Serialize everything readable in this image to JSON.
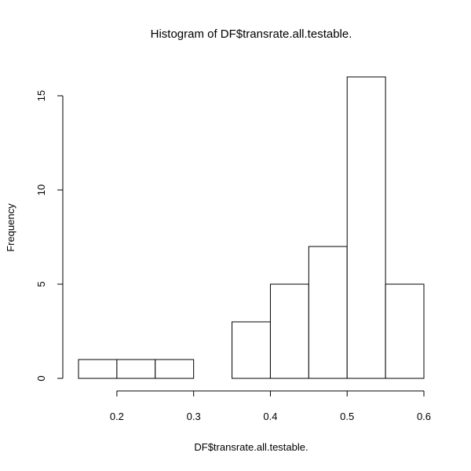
{
  "chart_data": {
    "type": "bar",
    "title": "Histogram of DF$transrate.all.testable.",
    "xlabel": "DF$transrate.all.testable.",
    "ylabel": "Frequency",
    "bins": [
      {
        "from": 0.15,
        "to": 0.2,
        "count": 1
      },
      {
        "from": 0.2,
        "to": 0.25,
        "count": 1
      },
      {
        "from": 0.25,
        "to": 0.3,
        "count": 1
      },
      {
        "from": 0.3,
        "to": 0.35,
        "count": 0
      },
      {
        "from": 0.35,
        "to": 0.4,
        "count": 3
      },
      {
        "from": 0.4,
        "to": 0.45,
        "count": 5
      },
      {
        "from": 0.45,
        "to": 0.5,
        "count": 7
      },
      {
        "from": 0.5,
        "to": 0.55,
        "count": 16
      },
      {
        "from": 0.55,
        "to": 0.6,
        "count": 5
      }
    ],
    "x_ticks": [
      "0.2",
      "0.3",
      "0.4",
      "0.5",
      "0.6"
    ],
    "x_tick_values": [
      0.2,
      0.3,
      0.4,
      0.5,
      0.6
    ],
    "y_ticks": [
      "0",
      "5",
      "10",
      "15"
    ],
    "y_tick_values": [
      0,
      5,
      10,
      15
    ],
    "xlim": [
      0.15,
      0.6
    ],
    "ylim": [
      0,
      16
    ],
    "grid": false,
    "legend": "none",
    "bar_fill": "#ffffff",
    "bar_stroke": "#000000"
  }
}
